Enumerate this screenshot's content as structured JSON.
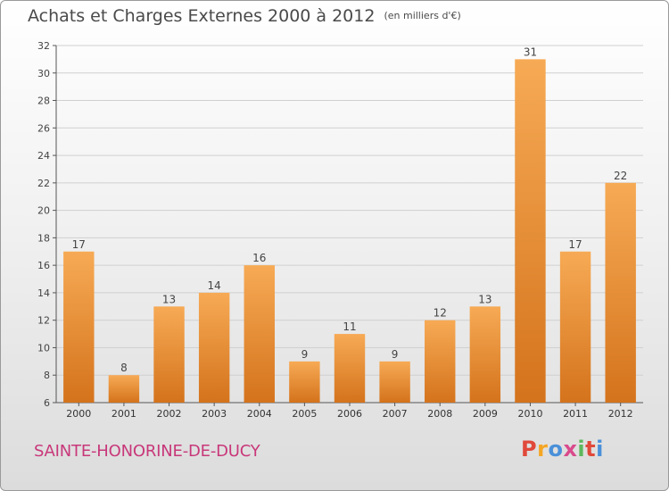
{
  "header": {
    "title": "Achats et Charges Externes 2000 à 2012",
    "unit": "(en milliers d'€)"
  },
  "footer": {
    "commune": "SAINTE-HONORINE-DE-DUCY",
    "logo_letters": [
      "P",
      "r",
      "o",
      "x",
      "i",
      "t",
      "i"
    ],
    "logo_colors": [
      "#e0493a",
      "#f5a623",
      "#4a90d9",
      "#d94a8c",
      "#5cb85c",
      "#e0493a",
      "#4a90d9"
    ]
  },
  "colors": {
    "bar": "#f0923a",
    "bar_light": "#f7aa55",
    "bar_dark": "#d4731c",
    "grid": "#d0d0d0",
    "axis": "#555555",
    "commune": "#c8387a"
  },
  "chart_data": {
    "type": "bar",
    "title": "Achats et Charges Externes 2000 à 2012",
    "subtitle": "(en milliers d'€)",
    "categories": [
      "2000",
      "2001",
      "2002",
      "2003",
      "2004",
      "2005",
      "2006",
      "2007",
      "2008",
      "2009",
      "2010",
      "2011",
      "2012"
    ],
    "values": [
      17,
      8,
      13,
      14,
      16,
      9,
      11,
      9,
      12,
      13,
      31,
      17,
      22
    ],
    "ylim": [
      6,
      32
    ],
    "yticks": [
      6,
      8,
      10,
      12,
      14,
      16,
      18,
      20,
      22,
      24,
      26,
      28,
      30,
      32
    ],
    "grid": true,
    "data_labels": true
  }
}
